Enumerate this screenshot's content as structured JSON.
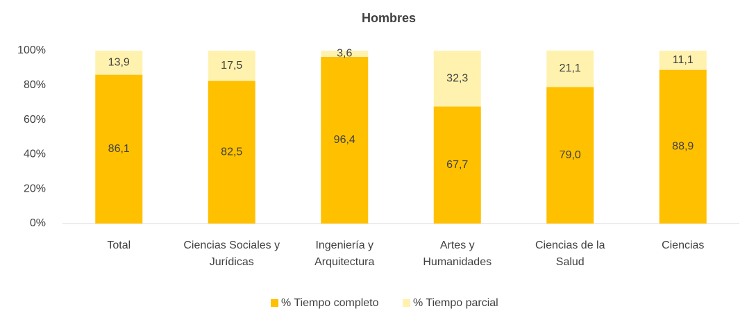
{
  "chart_data": {
    "type": "stacked_bar",
    "title": "Hombres",
    "categories": [
      "Total",
      "Ciencias Sociales y Jurídicas",
      "Ingeniería y Arquitectura",
      "Artes y Humanidades",
      "Ciencias de la Salud",
      "Ciencias"
    ],
    "series": [
      {
        "name": "% Tiempo completo",
        "color": "#ffc000",
        "values": [
          86.1,
          82.5,
          96.4,
          67.7,
          79.0,
          88.9
        ],
        "value_labels": [
          "86,1",
          "82,5",
          "96,4",
          "67,7",
          "79,0",
          "88,9"
        ]
      },
      {
        "name": "% Tiempo parcial",
        "color": "#fff2ae",
        "values": [
          13.9,
          17.5,
          3.6,
          32.3,
          21.1,
          11.1
        ],
        "value_labels": [
          "13,9",
          "17,5",
          "3,6",
          "32,3",
          "21,1",
          "11,1"
        ]
      }
    ],
    "ylim": [
      0,
      100
    ],
    "yticks": [
      {
        "value": 0,
        "label": "0%"
      },
      {
        "value": 20,
        "label": "20%"
      },
      {
        "value": 40,
        "label": "40%"
      },
      {
        "value": 60,
        "label": "60%"
      },
      {
        "value": 80,
        "label": "80%"
      },
      {
        "value": 100,
        "label": "100%"
      }
    ],
    "grid": false,
    "legend": "bottom"
  }
}
